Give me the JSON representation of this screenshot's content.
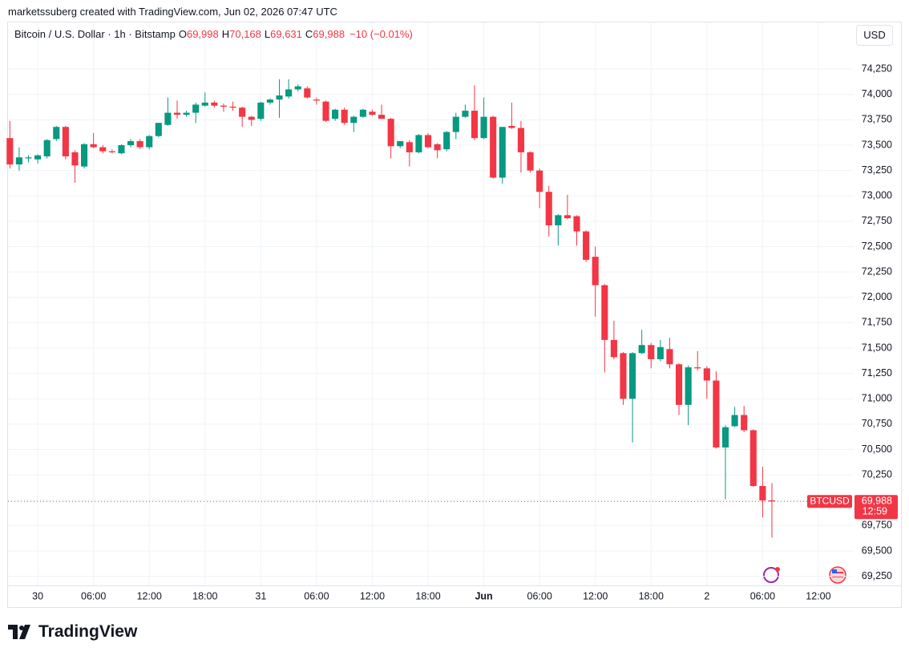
{
  "credit": "marketssuberg created with TradingView.com, Jun 02, 2026 07:47 UTC",
  "currency": "USD",
  "brand": "TradingView",
  "chart_data": {
    "type": "candlestick",
    "title": "Bitcoin / U.S. Dollar · 1h · Bitstamp",
    "ohlc_legend": [
      {
        "key": "O",
        "value": "69,998"
      },
      {
        "key": "H",
        "value": "70,168"
      },
      {
        "key": "L",
        "value": "69,631"
      },
      {
        "key": "C",
        "value": "69,988"
      }
    ],
    "change": "−10 (−0.01%)",
    "symbol": "BTCUSD",
    "price_tag": {
      "value": 69988,
      "label": "69,988"
    },
    "countdown": "12:59",
    "up_color": "#089981",
    "down_color": "#f23645",
    "grid": true,
    "x": [
      0,
      1,
      2,
      3,
      4,
      5,
      6,
      7,
      8,
      9,
      10,
      11,
      12,
      13,
      14,
      15,
      16,
      17,
      18,
      19,
      20,
      21,
      22,
      23,
      24,
      25,
      26,
      27,
      28,
      29,
      30,
      31,
      32,
      33,
      34,
      35,
      36,
      37,
      38,
      39,
      40,
      41,
      42,
      43,
      44,
      45,
      46,
      47,
      48,
      49,
      50,
      51,
      52,
      53,
      54,
      55,
      56,
      57,
      58,
      59,
      60,
      61,
      62,
      63,
      64,
      65,
      66,
      67,
      68,
      69,
      70,
      71,
      72,
      73,
      74,
      75,
      76,
      77,
      78,
      79,
      80,
      81,
      82
    ],
    "open": [
      73570,
      73310,
      73370,
      73360,
      73390,
      73560,
      73680,
      73430,
      73290,
      73510,
      73480,
      73440,
      73420,
      73500,
      73540,
      73480,
      73590,
      73700,
      73820,
      73800,
      73820,
      73890,
      73920,
      73890,
      73880,
      73870,
      73780,
      73760,
      73920,
      73950,
      73980,
      74050,
      74060,
      73950,
      73930,
      73760,
      73850,
      73720,
      73780,
      73830,
      73800,
      73760,
      73490,
      73530,
      73430,
      73600,
      73510,
      73460,
      73630,
      73780,
      73840,
      73570,
      73780,
      73180,
      73690,
      73670,
      73430,
      73250,
      73040,
      72710,
      72810,
      72800,
      72650,
      72400,
      72120,
      71580,
      71450,
      71000,
      71450,
      71530,
      71390,
      71490,
      71340,
      70940,
      71310,
      71300,
      71180,
      70520,
      70730,
      70840,
      70690,
      70140,
      69998
    ],
    "high": [
      73740,
      73480,
      73400,
      73410,
      73560,
      73690,
      73690,
      73450,
      73520,
      73620,
      73500,
      73460,
      73510,
      73560,
      73560,
      73600,
      73720,
      73970,
      73940,
      73840,
      73920,
      74020,
      73940,
      73910,
      73930,
      73880,
      73790,
      73930,
      73960,
      74150,
      74150,
      74100,
      74080,
      73970,
      73940,
      73860,
      73870,
      73790,
      73860,
      73850,
      73900,
      73770,
      73540,
      73550,
      73610,
      73620,
      73520,
      73640,
      73820,
      73900,
      74090,
      73970,
      73790,
      73680,
      73920,
      73740,
      73440,
      73270,
      73100,
      72820,
      73010,
      72810,
      72660,
      72500,
      72130,
      71770,
      71460,
      71460,
      71680,
      71550,
      71580,
      71600,
      71350,
      71330,
      71470,
      71320,
      71270,
      70740,
      70920,
      70930,
      70700,
      70330,
      70168
    ],
    "low": [
      73270,
      73250,
      73330,
      73320,
      73370,
      73540,
      73360,
      73130,
      73270,
      73470,
      73420,
      73420,
      73410,
      73480,
      73460,
      73460,
      73580,
      73690,
      73760,
      73780,
      73720,
      73880,
      73870,
      73830,
      73840,
      73680,
      73690,
      73740,
      73900,
      73770,
      73960,
      74030,
      73960,
      73900,
      73730,
      73740,
      73700,
      73630,
      73770,
      73790,
      73760,
      73370,
      73470,
      73290,
      73420,
      73470,
      73370,
      73440,
      73560,
      73770,
      73550,
      73560,
      73170,
      73120,
      73660,
      73230,
      73230,
      72880,
      72600,
      72510,
      72770,
      72510,
      72350,
      71810,
      71260,
      71390,
      70940,
      70570,
      71440,
      71300,
      71370,
      71300,
      70840,
      70740,
      71280,
      71000,
      70510,
      70010,
      70720,
      70670,
      70130,
      69830,
      69631
    ],
    "close": [
      73310,
      73380,
      73380,
      73400,
      73550,
      73680,
      73390,
      73300,
      73510,
      73480,
      73440,
      73430,
      73500,
      73540,
      73480,
      73590,
      73720,
      73820,
      73800,
      73820,
      73900,
      73920,
      73890,
      73880,
      73870,
      73780,
      73750,
      73920,
      73950,
      73990,
      74050,
      74080,
      73970,
      73940,
      73740,
      73850,
      73720,
      73780,
      73850,
      73800,
      73760,
      73490,
      73540,
      73430,
      73600,
      73480,
      73450,
      73630,
      73780,
      73840,
      73570,
      73780,
      73180,
      73680,
      73670,
      73430,
      73250,
      73040,
      72710,
      72810,
      72780,
      72650,
      72370,
      72120,
      71580,
      71410,
      71000,
      71450,
      71530,
      71390,
      71510,
      71340,
      70940,
      71310,
      71300,
      71180,
      70520,
      70720,
      70840,
      70690,
      70140,
      69998,
      69988
    ],
    "xlim": [
      -0.2,
      90.8
    ],
    "xticks": [
      {
        "value": 3,
        "label": "30"
      },
      {
        "value": 9,
        "label": "06:00"
      },
      {
        "value": 15,
        "label": "12:00"
      },
      {
        "value": 21,
        "label": "18:00"
      },
      {
        "value": 27,
        "label": "31"
      },
      {
        "value": 33,
        "label": "06:00"
      },
      {
        "value": 39,
        "label": "12:00"
      },
      {
        "value": 45,
        "label": "18:00"
      },
      {
        "value": 51,
        "label": "Jun"
      },
      {
        "value": 57,
        "label": "06:00"
      },
      {
        "value": 63,
        "label": "12:00"
      },
      {
        "value": 69,
        "label": "18:00"
      },
      {
        "value": 75,
        "label": "2"
      },
      {
        "value": 81,
        "label": "06:00"
      },
      {
        "value": 87,
        "label": "12:00"
      }
    ],
    "ylim": [
      69160,
      74710
    ],
    "yticks": [
      {
        "value": 69250,
        "label": "69,250"
      },
      {
        "value": 69500,
        "label": "69,500"
      },
      {
        "value": 69750,
        "label": "69,750"
      },
      {
        "value": 70000,
        "label": "70,000"
      },
      {
        "value": 70250,
        "label": "70,250"
      },
      {
        "value": 70500,
        "label": "70,500"
      },
      {
        "value": 70750,
        "label": "70,750"
      },
      {
        "value": 71000,
        "label": "71,000"
      },
      {
        "value": 71250,
        "label": "71,250"
      },
      {
        "value": 71500,
        "label": "71,500"
      },
      {
        "value": 71750,
        "label": "71,750"
      },
      {
        "value": 72000,
        "label": "72,000"
      },
      {
        "value": 72250,
        "label": "72,250"
      },
      {
        "value": 72500,
        "label": "72,500"
      },
      {
        "value": 72750,
        "label": "72,750"
      },
      {
        "value": 73000,
        "label": "73,000"
      },
      {
        "value": 73250,
        "label": "73,250"
      },
      {
        "value": 73500,
        "label": "73,500"
      },
      {
        "value": 73750,
        "label": "73,750"
      },
      {
        "value": 74000,
        "label": "74,000"
      },
      {
        "value": 74250,
        "label": "74,250"
      }
    ]
  }
}
